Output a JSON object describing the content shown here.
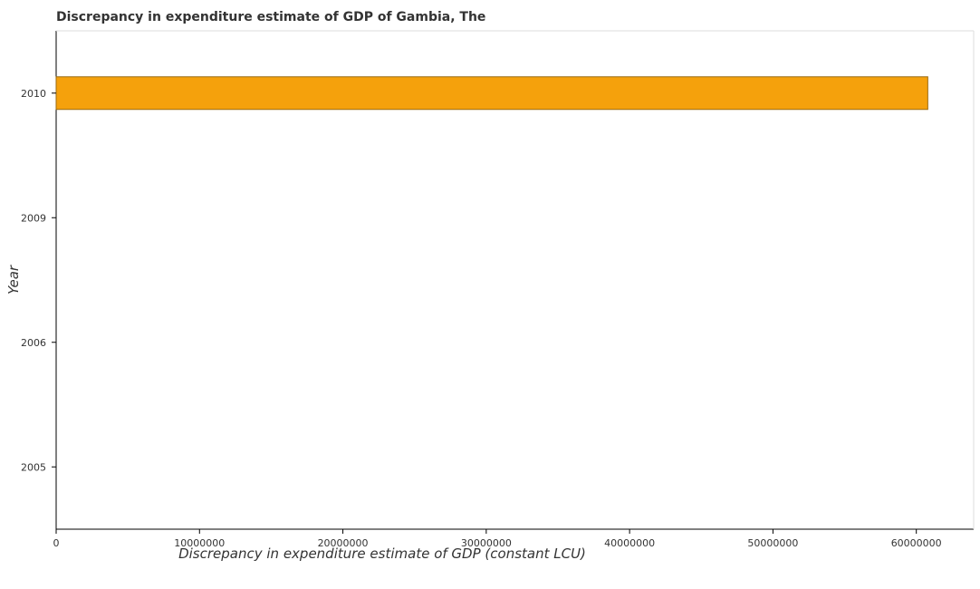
{
  "chart_data": {
    "type": "bar",
    "orientation": "horizontal",
    "title": "Discrepancy in expenditure estimate of GDP of Gambia, The",
    "xlabel": "Discrepancy in expenditure estimate of GDP (constant LCU)",
    "ylabel": "Year",
    "categories": [
      "2005",
      "2006",
      "2009",
      "2010"
    ],
    "values": [
      0,
      0,
      0,
      60800000
    ],
    "xlim": [
      0,
      64000000
    ],
    "x_ticks": [
      0,
      10000000,
      20000000,
      30000000,
      40000000,
      50000000,
      60000000
    ],
    "x_tick_labels": [
      "0",
      "10000000",
      "20000000",
      "30000000",
      "40000000",
      "50000000",
      "60000000"
    ],
    "bar_color": "#f5a10c",
    "bar_edge_color": "#9a6a10",
    "grid": false
  }
}
